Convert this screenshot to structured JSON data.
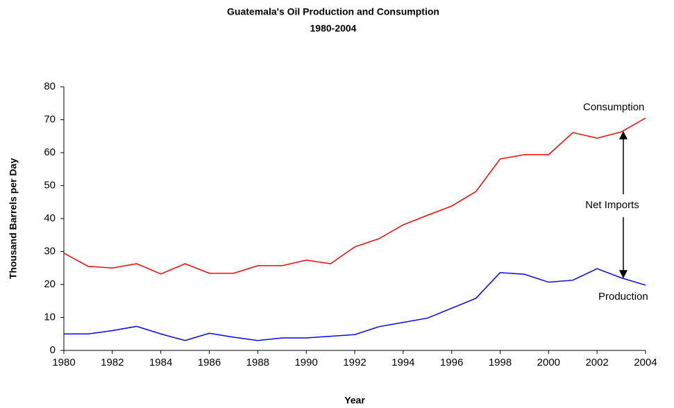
{
  "chart_data": {
    "type": "line",
    "title": "Guatemala's Oil Production and Consumption",
    "subtitle": "1980-2004",
    "x_label": "Year",
    "y_label": "Thousand Barrels per Day",
    "x": [
      1980,
      1981,
      1982,
      1983,
      1984,
      1985,
      1986,
      1987,
      1988,
      1989,
      1990,
      1991,
      1992,
      1993,
      1994,
      1995,
      1996,
      1997,
      1998,
      1999,
      2000,
      2001,
      2002,
      2003,
      2004
    ],
    "series": [
      {
        "name": "Consumption",
        "color": "#ff0000",
        "values": [
          29.5,
          25.5,
          25,
          26.3,
          23.2,
          26.3,
          23.4,
          23.4,
          25.7,
          25.7,
          27.4,
          26.3,
          31.4,
          33.9,
          38.1,
          41,
          43.8,
          48.2,
          58.1,
          59.4,
          59.4,
          66.1,
          64.4,
          66.3,
          70.5
        ]
      },
      {
        "name": "Production",
        "color": "#0000ff",
        "values": [
          5,
          5,
          6,
          7.3,
          5,
          3,
          5.2,
          4,
          3,
          3.8,
          3.8,
          4.3,
          4.8,
          7.2,
          8.5,
          9.8,
          12.8,
          15.8,
          23.6,
          23.1,
          20.7,
          21.3,
          24.8,
          22,
          19.8
        ]
      }
    ],
    "annotations": [
      "Net Imports"
    ],
    "xlim": [
      1980,
      2004
    ],
    "xticks": [
      1980,
      1982,
      1984,
      1986,
      1988,
      1990,
      1992,
      1994,
      1996,
      1998,
      2000,
      2002,
      2004
    ],
    "ylim": [
      0,
      80
    ],
    "yticks": [
      0,
      10,
      20,
      30,
      40,
      50,
      60,
      70,
      80
    ],
    "grid": false
  }
}
